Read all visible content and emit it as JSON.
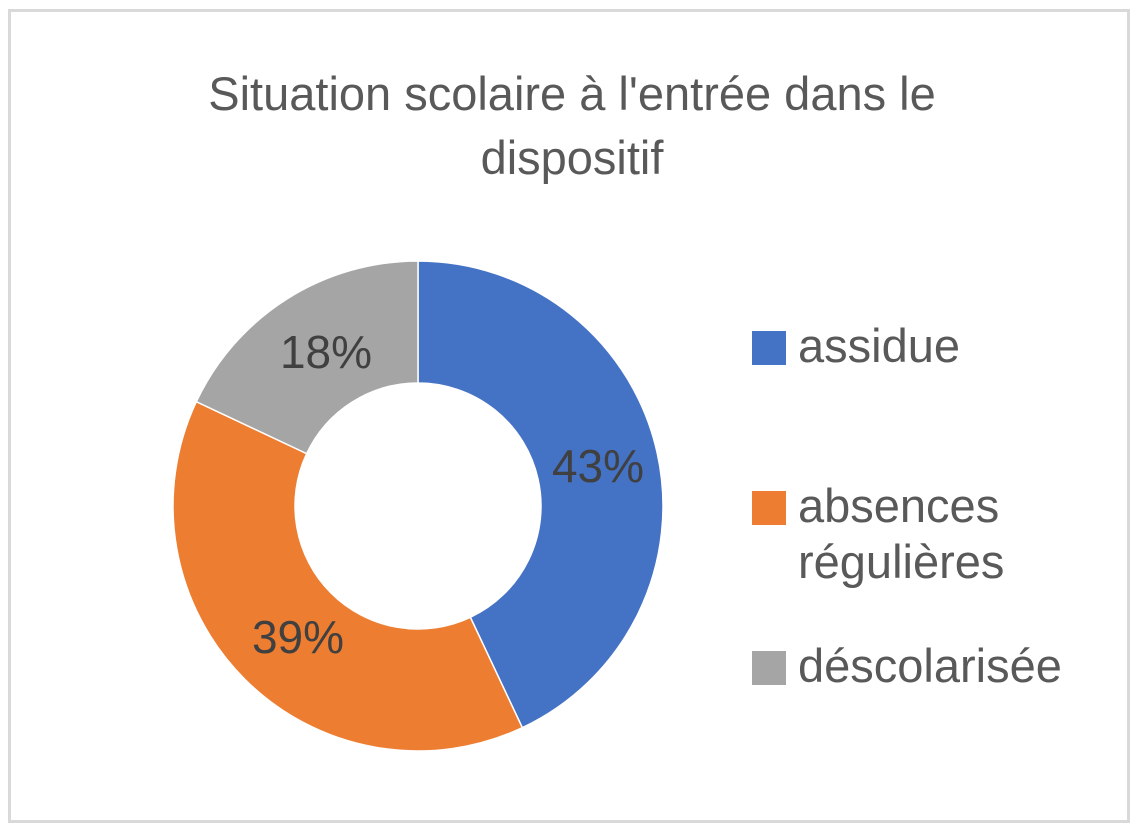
{
  "chart_data": {
    "type": "pie",
    "variant": "donut",
    "title": "Situation scolaire à l'entrée dans le dispositif",
    "title_lines": [
      "Situation scolaire à l'entrée dans le",
      "dispositif"
    ],
    "categories": [
      "assidue",
      "absences régulières",
      "déscolarisée"
    ],
    "legend_lines": [
      [
        "assidue"
      ],
      [
        "absences",
        "régulières"
      ],
      [
        "déscolarisée"
      ]
    ],
    "values": [
      43,
      39,
      18
    ],
    "value_labels": [
      "43%",
      "39%",
      "18%"
    ],
    "colors": [
      "#4472C4",
      "#ED7D31",
      "#A5A5A5"
    ],
    "legend_position": "right",
    "label_color": "#404040"
  }
}
